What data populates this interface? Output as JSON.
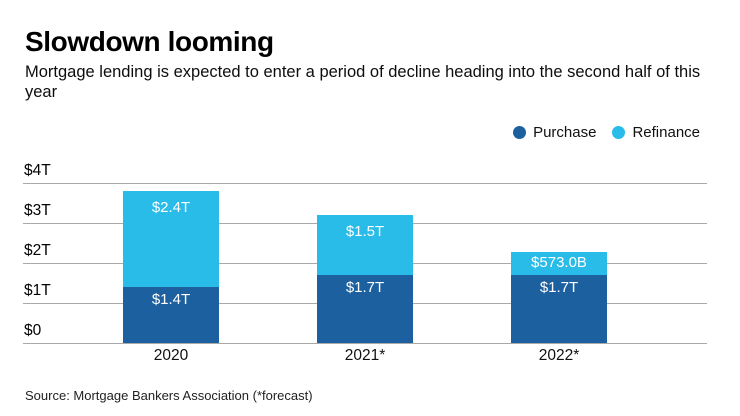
{
  "header": {
    "title": "Slowdown looming",
    "subtitle": "Mortgage lending is expected to enter a period of decline heading into the second half of this year"
  },
  "legend": {
    "items": [
      {
        "label": "Purchase",
        "color": "#1c609f"
      },
      {
        "label": "Refinance",
        "color": "#29bce8"
      }
    ]
  },
  "chart_data": {
    "type": "bar",
    "stacked": true,
    "categories": [
      "2020",
      "2021*",
      "2022*"
    ],
    "series": [
      {
        "name": "Purchase",
        "color": "#1c609f",
        "values": [
          1.4,
          1.7,
          1.7
        ],
        "value_labels": [
          "$1.4T",
          "$1.7T",
          "$1.7T"
        ]
      },
      {
        "name": "Refinance",
        "color": "#29bce8",
        "values": [
          2.4,
          1.5,
          0.573
        ],
        "value_labels": [
          "$2.4T",
          "$1.5T",
          "$573.0B"
        ]
      }
    ],
    "unit": "USD trillions",
    "xlabel": "",
    "ylabel": "",
    "ylim": [
      0,
      4
    ],
    "yticks": [
      {
        "value": 0,
        "label": "$0"
      },
      {
        "value": 1,
        "label": "$1T"
      },
      {
        "value": 2,
        "label": "$2T"
      },
      {
        "value": 3,
        "label": "$3T"
      },
      {
        "value": 4,
        "label": "$4T"
      }
    ],
    "grid": true,
    "gridline_color": "#a9a9a9",
    "value_label_color": "#ffffff",
    "legend_position": "top-right"
  },
  "source": "Source: Mortgage Bankers Association (*forecast)"
}
